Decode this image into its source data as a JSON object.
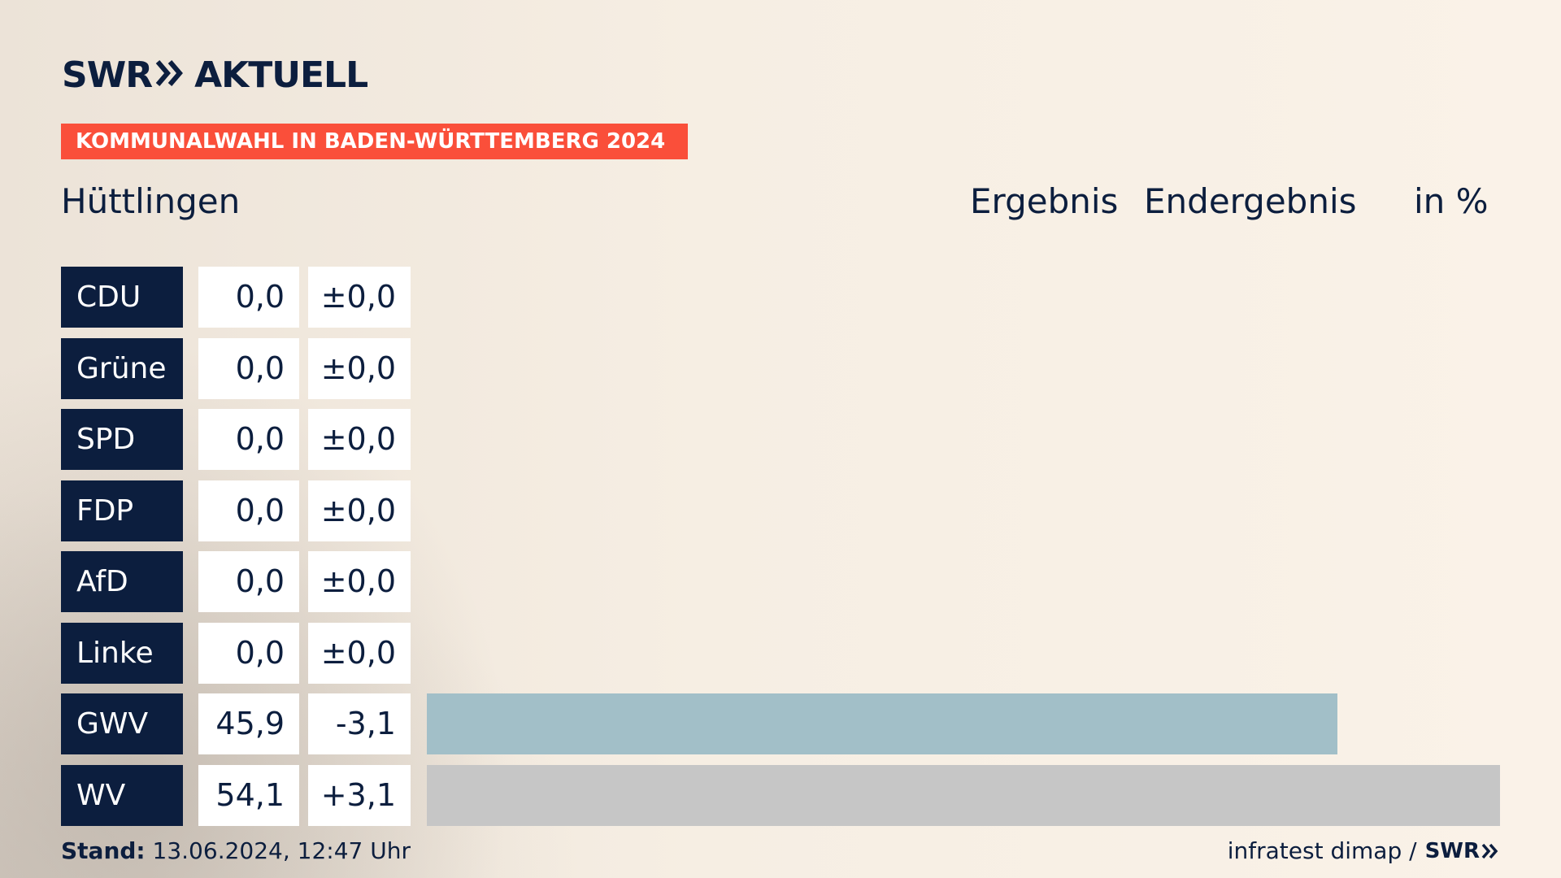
{
  "logo": {
    "brand": "SWR",
    "product": "AKTUELL",
    "chevron_icon": "double-chevron-right-icon"
  },
  "banner": {
    "text": "KOMMUNALWAHL IN BADEN-WÜRTTEMBERG 2024",
    "color": "#fa4f3a"
  },
  "place": "Hüttlingen",
  "headers": {
    "result": "Ergebnis",
    "status": "Endergebnis",
    "unit": "in %"
  },
  "chart_data": {
    "type": "bar",
    "orientation": "horizontal",
    "categories": [
      "CDU",
      "Grüne",
      "SPD",
      "FDP",
      "AfD",
      "Linke",
      "GWV",
      "WV"
    ],
    "series": [
      {
        "values": [
          0.0,
          0.0,
          0.0,
          0.0,
          0.0,
          0.0,
          45.9,
          54.1
        ]
      }
    ],
    "changes": [
      0.0,
      0.0,
      0.0,
      0.0,
      0.0,
      0.0,
      -3.1,
      3.1
    ],
    "value_labels": [
      "0,0",
      "0,0",
      "0,0",
      "0,0",
      "0,0",
      "0,0",
      "45,9",
      "54,1"
    ],
    "change_labels": [
      "±0,0",
      "±0,0",
      "±0,0",
      "±0,0",
      "±0,0",
      "±0,0",
      "-3,1",
      "+3,1"
    ],
    "bar_colors": [
      "#0c1e3e",
      "#0c1e3e",
      "#0c1e3e",
      "#0c1e3e",
      "#0c1e3e",
      "#0c1e3e",
      "#a2bfc8",
      "#c6c6c6"
    ],
    "xlim": [
      0,
      54.1
    ],
    "grid": false,
    "legend": "none"
  },
  "footer": {
    "stand_label": "Stand:",
    "stand_value": "13.06.2024, 12:47 Uhr",
    "source": "infratest dimap /",
    "source_brand": "SWR"
  }
}
